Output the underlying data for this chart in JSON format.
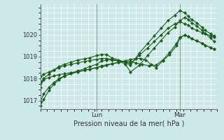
{
  "xlabel": "Pression niveau de la mer( hPa )",
  "bg_color": "#cce8e8",
  "grid_color": "#ffffff",
  "line_color": "#1a5c1a",
  "marker_color": "#1a5c1a",
  "ylim": [
    1016.6,
    1021.4
  ],
  "yticks": [
    1017,
    1018,
    1019,
    1020
  ],
  "day_labels": [
    "Lun",
    "Mar"
  ],
  "day_positions": [
    0.33,
    0.82
  ],
  "xlim": [
    0.0,
    1.04
  ],
  "series": [
    {
      "x": [
        0.0,
        0.02,
        0.05,
        0.08,
        0.11,
        0.14,
        0.18,
        0.22,
        0.26,
        0.29,
        0.33,
        0.36,
        0.39,
        0.42,
        0.46,
        0.5,
        0.53,
        0.58,
        0.63,
        0.67,
        0.71,
        0.75,
        0.79,
        0.82,
        0.85,
        0.87,
        0.89,
        0.92,
        0.95,
        0.97,
        1.0,
        1.02
      ],
      "y": [
        1016.75,
        1017.05,
        1017.45,
        1017.75,
        1017.95,
        1018.1,
        1018.25,
        1018.35,
        1018.45,
        1018.55,
        1018.65,
        1018.8,
        1018.85,
        1018.85,
        1018.8,
        1018.75,
        1018.7,
        1019.05,
        1019.4,
        1019.7,
        1020.0,
        1020.3,
        1020.5,
        1020.6,
        1020.5,
        1020.45,
        1020.3,
        1020.2,
        1020.1,
        1020.05,
        1019.95,
        1019.9
      ]
    },
    {
      "x": [
        0.0,
        0.02,
        0.05,
        0.08,
        0.11,
        0.14,
        0.18,
        0.22,
        0.26,
        0.29,
        0.33,
        0.36,
        0.39,
        0.42,
        0.46,
        0.5,
        0.53,
        0.58,
        0.63,
        0.67,
        0.71,
        0.75,
        0.79,
        0.82,
        0.85,
        0.87,
        0.89,
        0.92,
        0.95,
        0.97,
        1.0,
        1.02
      ],
      "y": [
        1017.6,
        1018.0,
        1018.2,
        1018.4,
        1018.55,
        1018.65,
        1018.75,
        1018.85,
        1018.9,
        1018.95,
        1019.05,
        1019.1,
        1019.1,
        1018.95,
        1018.85,
        1018.75,
        1018.6,
        1019.15,
        1019.6,
        1019.95,
        1020.3,
        1020.65,
        1020.9,
        1021.1,
        1021.0,
        1020.85,
        1020.7,
        1020.55,
        1020.35,
        1020.2,
        1020.05,
        1019.95
      ]
    },
    {
      "x": [
        0.0,
        0.02,
        0.05,
        0.08,
        0.11,
        0.14,
        0.18,
        0.22,
        0.26,
        0.29,
        0.33,
        0.36,
        0.39,
        0.42,
        0.46,
        0.5,
        0.53,
        0.58,
        0.63,
        0.67,
        0.71,
        0.75,
        0.79,
        0.82,
        0.85,
        0.87,
        0.89,
        0.92,
        0.95,
        0.97,
        1.0,
        1.02
      ],
      "y": [
        1018.1,
        1018.2,
        1018.3,
        1018.4,
        1018.5,
        1018.58,
        1018.65,
        1018.72,
        1018.78,
        1018.82,
        1018.88,
        1018.92,
        1018.92,
        1018.88,
        1018.82,
        1018.65,
        1018.3,
        1018.6,
        1019.05,
        1019.4,
        1019.75,
        1020.1,
        1020.35,
        1020.65,
        1020.8,
        1020.7,
        1020.55,
        1020.4,
        1020.2,
        1020.05,
        1019.85,
        1019.7
      ]
    },
    {
      "x": [
        0.0,
        0.02,
        0.05,
        0.08,
        0.11,
        0.14,
        0.18,
        0.22,
        0.26,
        0.29,
        0.33,
        0.36,
        0.39,
        0.42,
        0.46,
        0.5,
        0.53,
        0.56,
        0.59,
        0.62,
        0.65,
        0.68,
        0.72,
        0.76,
        0.8,
        0.82,
        0.85,
        0.87,
        0.89,
        0.92,
        0.95,
        0.97,
        1.0,
        1.02
      ],
      "y": [
        1017.85,
        1017.95,
        1018.05,
        1018.12,
        1018.18,
        1018.22,
        1018.27,
        1018.32,
        1018.38,
        1018.43,
        1018.5,
        1018.55,
        1018.6,
        1018.68,
        1018.75,
        1018.82,
        1018.87,
        1018.92,
        1018.92,
        1018.85,
        1018.65,
        1018.5,
        1018.82,
        1019.1,
        1019.5,
        1019.85,
        1020.0,
        1019.92,
        1019.82,
        1019.72,
        1019.62,
        1019.52,
        1019.42,
        1019.35
      ]
    },
    {
      "x": [
        0.0,
        0.02,
        0.05,
        0.08,
        0.11,
        0.14,
        0.18,
        0.22,
        0.26,
        0.29,
        0.33,
        0.36,
        0.39,
        0.42,
        0.46,
        0.5,
        0.53,
        0.56,
        0.6,
        0.64,
        0.68,
        0.72,
        0.76,
        0.8,
        0.82,
        0.85,
        0.87,
        0.89,
        0.92,
        0.95,
        0.97,
        1.0,
        1.02
      ],
      "y": [
        1016.95,
        1017.3,
        1017.6,
        1017.82,
        1018.0,
        1018.12,
        1018.22,
        1018.3,
        1018.38,
        1018.43,
        1018.5,
        1018.58,
        1018.63,
        1018.68,
        1018.73,
        1018.78,
        1018.78,
        1018.72,
        1018.65,
        1018.58,
        1018.62,
        1018.85,
        1019.2,
        1019.6,
        1019.88,
        1020.0,
        1019.92,
        1019.82,
        1019.72,
        1019.62,
        1019.52,
        1019.42,
        1019.35
      ]
    }
  ]
}
